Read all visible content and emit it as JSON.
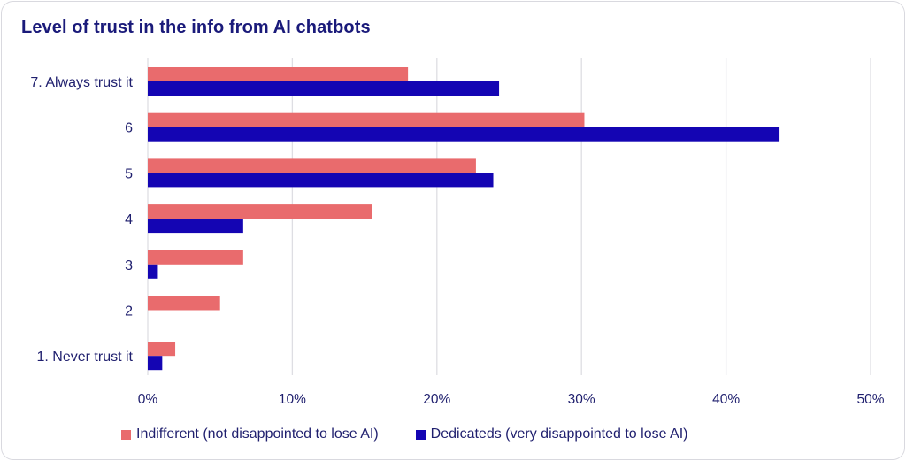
{
  "chart_data": {
    "type": "bar",
    "orientation": "horizontal",
    "title": "Level of trust in the info from AI chatbots",
    "categories": [
      "7. Always trust it",
      "6",
      "5",
      "4",
      "3",
      "2",
      "1. Never trust it"
    ],
    "series": [
      {
        "name": "Indifferent (not disappointed to lose AI)",
        "color": "#e96b6d",
        "values": [
          18.0,
          30.2,
          22.7,
          15.5,
          6.6,
          5.0,
          1.9
        ]
      },
      {
        "name": "Dedicateds (very disappointed to lose AI)",
        "color": "#1405b3",
        "values": [
          24.3,
          43.7,
          23.9,
          6.6,
          0.7,
          0,
          1.0
        ]
      }
    ],
    "xlim": [
      0,
      50
    ],
    "xticks": [
      "0%",
      "10%",
      "20%",
      "30%",
      "40%",
      "50%"
    ],
    "grid": true,
    "legend_position": "bottom"
  }
}
